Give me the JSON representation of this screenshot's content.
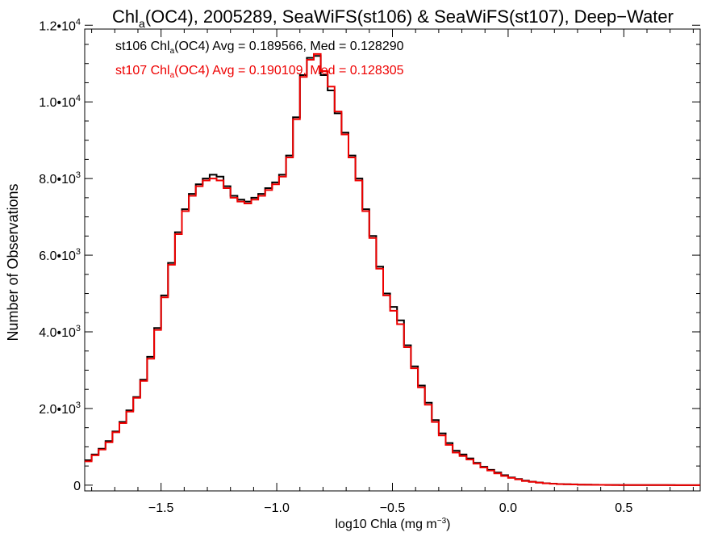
{
  "chart_data": {
    "type": "line",
    "title": {
      "pre": "Chl",
      "sub": "a",
      "post": "(OC4), 2005289, SeaWiFS(st106) & SeaWiFS(st107), Deep−Water"
    },
    "xlabel": {
      "pre": "log10 Chla (mg m",
      "sup": "−3",
      "post": ")"
    },
    "ylabel": "Number of Observations",
    "xlim": [
      -1.83,
      0.83
    ],
    "ylim": [
      -150,
      11900
    ],
    "x_ticks": [
      {
        "value": -1.5,
        "label": "−1.5"
      },
      {
        "value": -1.0,
        "label": "−1.0"
      },
      {
        "value": -0.5,
        "label": "−0.5"
      },
      {
        "value": 0.0,
        "label": "0.0"
      },
      {
        "value": 0.5,
        "label": "0.5"
      }
    ],
    "y_ticks": [
      {
        "value": 0,
        "mant": "0",
        "exp": ""
      },
      {
        "value": 2000,
        "mant": "2.0•10",
        "exp": "3"
      },
      {
        "value": 4000,
        "mant": "4.0•10",
        "exp": "3"
      },
      {
        "value": 6000,
        "mant": "6.0•10",
        "exp": "3"
      },
      {
        "value": 8000,
        "mant": "8.0•10",
        "exp": "3"
      },
      {
        "value": 10000,
        "mant": "1.0•10",
        "exp": "4"
      },
      {
        "value": 12000,
        "mant": "1.2•10",
        "exp": "4"
      }
    ],
    "grid": false,
    "legend_position": "top-left",
    "series": [
      {
        "name": "st106",
        "color": "#000000",
        "legend": {
          "pre": "st106 Chl",
          "sub": "a",
          "post": "(OC4) Avg = 0.189566, Med = 0.128290"
        },
        "x": [
          -1.83,
          -1.8,
          -1.77,
          -1.74,
          -1.71,
          -1.68,
          -1.65,
          -1.62,
          -1.59,
          -1.56,
          -1.53,
          -1.5,
          -1.47,
          -1.44,
          -1.41,
          -1.38,
          -1.35,
          -1.32,
          -1.29,
          -1.26,
          -1.23,
          -1.2,
          -1.17,
          -1.14,
          -1.11,
          -1.08,
          -1.05,
          -1.02,
          -0.99,
          -0.96,
          -0.93,
          -0.9,
          -0.87,
          -0.84,
          -0.81,
          -0.78,
          -0.75,
          -0.72,
          -0.69,
          -0.66,
          -0.63,
          -0.6,
          -0.57,
          -0.54,
          -0.51,
          -0.48,
          -0.45,
          -0.42,
          -0.39,
          -0.36,
          -0.33,
          -0.3,
          -0.27,
          -0.24,
          -0.21,
          -0.18,
          -0.15,
          -0.12,
          -0.09,
          -0.06,
          -0.03,
          0.0,
          0.03,
          0.06,
          0.09,
          0.12,
          0.15,
          0.18,
          0.21,
          0.24,
          0.27,
          0.3,
          0.33,
          0.36,
          0.39,
          0.42,
          0.45,
          0.48,
          0.51,
          0.54,
          0.57,
          0.6,
          0.63,
          0.66,
          0.69,
          0.72,
          0.75,
          0.78,
          0.81
        ],
        "y": [
          650,
          800,
          950,
          1150,
          1400,
          1650,
          1950,
          2300,
          2750,
          3350,
          4100,
          4950,
          5800,
          6600,
          7200,
          7600,
          7850,
          8000,
          8100,
          8050,
          7800,
          7550,
          7450,
          7400,
          7500,
          7600,
          7750,
          7900,
          8100,
          8600,
          9600,
          10700,
          11150,
          11200,
          10700,
          10300,
          9700,
          9200,
          8600,
          8000,
          7200,
          6500,
          5700,
          5000,
          4650,
          4300,
          3650,
          3100,
          2600,
          2150,
          1700,
          1350,
          1100,
          900,
          800,
          700,
          580,
          480,
          400,
          330,
          260,
          200,
          160,
          120,
          90,
          70,
          50,
          40,
          30,
          25,
          20,
          15,
          12,
          10,
          8,
          6,
          5,
          4,
          3,
          3,
          2,
          2,
          1,
          1,
          1,
          0,
          0,
          0,
          0
        ]
      },
      {
        "name": "st107",
        "color": "#ee0000",
        "legend": {
          "pre": "st107 Chl",
          "sub": "a",
          "post": "(OC4) Avg = 0.190109, Med = 0.128305"
        },
        "x": [
          -1.83,
          -1.8,
          -1.77,
          -1.74,
          -1.71,
          -1.68,
          -1.65,
          -1.62,
          -1.59,
          -1.56,
          -1.53,
          -1.5,
          -1.47,
          -1.44,
          -1.41,
          -1.38,
          -1.35,
          -1.32,
          -1.29,
          -1.26,
          -1.23,
          -1.2,
          -1.17,
          -1.14,
          -1.11,
          -1.08,
          -1.05,
          -1.02,
          -0.99,
          -0.96,
          -0.93,
          -0.9,
          -0.87,
          -0.84,
          -0.81,
          -0.78,
          -0.75,
          -0.72,
          -0.69,
          -0.66,
          -0.63,
          -0.6,
          -0.57,
          -0.54,
          -0.51,
          -0.48,
          -0.45,
          -0.42,
          -0.39,
          -0.36,
          -0.33,
          -0.3,
          -0.27,
          -0.24,
          -0.21,
          -0.18,
          -0.15,
          -0.12,
          -0.09,
          -0.06,
          -0.03,
          0.0,
          0.03,
          0.06,
          0.09,
          0.12,
          0.15,
          0.18,
          0.21,
          0.24,
          0.27,
          0.3,
          0.33,
          0.36,
          0.39,
          0.42,
          0.45,
          0.48,
          0.51,
          0.54,
          0.57,
          0.6,
          0.63,
          0.66,
          0.69,
          0.72,
          0.75,
          0.78,
          0.81
        ],
        "y": [
          620,
          780,
          930,
          1120,
          1380,
          1620,
          1920,
          2280,
          2720,
          3300,
          4050,
          4900,
          5750,
          6550,
          7150,
          7550,
          7800,
          7950,
          8000,
          7950,
          7750,
          7500,
          7400,
          7350,
          7450,
          7550,
          7700,
          7850,
          8050,
          8550,
          9550,
          10650,
          11100,
          11250,
          10800,
          10400,
          9750,
          9150,
          8550,
          7950,
          7150,
          6450,
          5650,
          4950,
          4550,
          4200,
          3600,
          3050,
          2550,
          2100,
          1650,
          1300,
          1050,
          850,
          760,
          670,
          560,
          460,
          380,
          310,
          240,
          190,
          150,
          110,
          85,
          65,
          48,
          38,
          28,
          22,
          18,
          14,
          11,
          9,
          7,
          5,
          4,
          3,
          3,
          2,
          2,
          1,
          1,
          1,
          0,
          0,
          0,
          0,
          0
        ]
      }
    ]
  }
}
